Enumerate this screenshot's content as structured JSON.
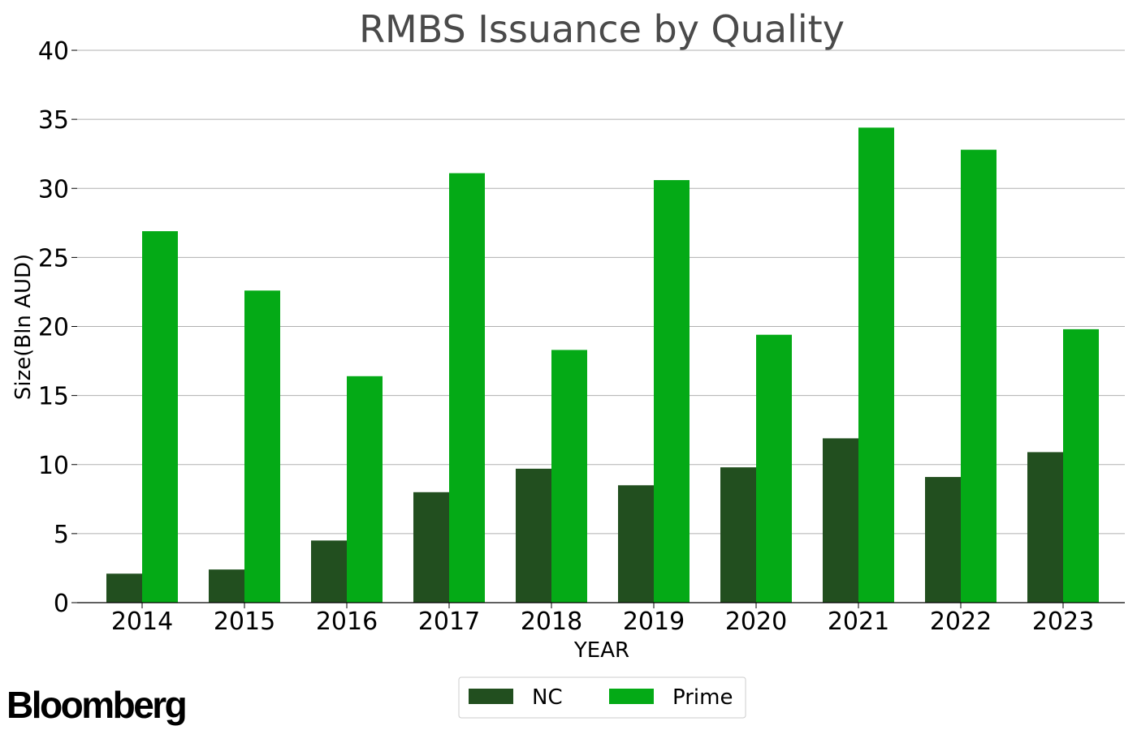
{
  "brand": "Bloomberg",
  "chart_data": {
    "type": "bar",
    "title": "RMBS Issuance by Quality",
    "xlabel": "YEAR",
    "ylabel": "Size(Bln AUD)",
    "ylim": [
      0,
      40
    ],
    "yticks": [
      0,
      5,
      10,
      15,
      20,
      25,
      30,
      35,
      40
    ],
    "grid": "horizontal",
    "legend_position": "bottom-center",
    "categories": [
      "2014",
      "2015",
      "2016",
      "2017",
      "2018",
      "2019",
      "2020",
      "2021",
      "2022",
      "2023"
    ],
    "series": [
      {
        "name": "NC",
        "color": "#224f1f",
        "values": [
          2.1,
          2.4,
          4.5,
          8.0,
          9.7,
          8.5,
          9.8,
          11.9,
          9.1,
          10.9
        ]
      },
      {
        "name": "Prime",
        "color": "#04aa16",
        "values": [
          26.9,
          22.6,
          16.4,
          31.1,
          18.3,
          30.6,
          19.4,
          34.4,
          32.8,
          19.8
        ]
      }
    ]
  }
}
